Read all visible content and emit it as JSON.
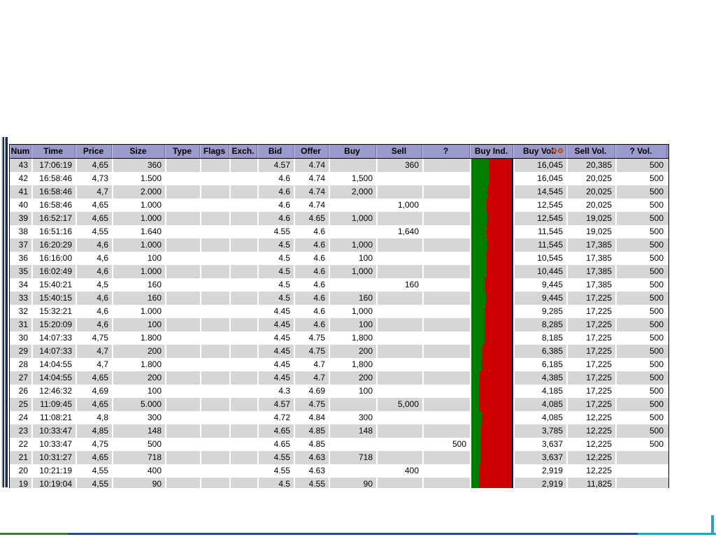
{
  "colors": {
    "header_bg": "#9b9bcb",
    "row_stripe": "#d6d6d6",
    "buy_indicator_green": "#007d00",
    "buy_indicator_red": "#cc0000",
    "indicator_border_navy": "#000066",
    "splitter_dark": "#16294e",
    "splitter_light": "#8ea7c6",
    "bottom_edge_green": "#3e7a34",
    "bottom_edge_navy": "#2a4a9a",
    "bottom_edge_cyan": "#2f9dc8"
  },
  "table": {
    "columns": [
      {
        "key": "num",
        "label": "Num"
      },
      {
        "key": "time",
        "label": "Time"
      },
      {
        "key": "price",
        "label": "Price"
      },
      {
        "key": "size",
        "label": "Size"
      },
      {
        "key": "type",
        "label": "Type"
      },
      {
        "key": "flags",
        "label": "Flags"
      },
      {
        "key": "exch",
        "label": "Exch."
      },
      {
        "key": "bid",
        "label": "Bid"
      },
      {
        "key": "offer",
        "label": "Offer"
      },
      {
        "key": "buy",
        "label": "Buy"
      },
      {
        "key": "sell",
        "label": "Sell"
      },
      {
        "key": "q",
        "label": "?"
      },
      {
        "key": "buyind",
        "label": "Buy Ind."
      },
      {
        "key": "buy_vol",
        "label": "Buy Vol.",
        "sort_icons": [
          "orange-dot-icon",
          "orange-dot-icon"
        ]
      },
      {
        "key": "sell_vol",
        "label": "Sell Vol."
      },
      {
        "key": "q_vol",
        "label": "? Vol."
      }
    ],
    "rows": [
      {
        "num": "43",
        "time": "17:06:19",
        "price": "4,65",
        "size": "360",
        "type": "",
        "flags": "",
        "exch": "",
        "bid": "4.57",
        "offer": "4.74",
        "buy": "",
        "sell": "360",
        "q": "",
        "buy_vol": "16,045",
        "sell_vol": "20,385",
        "q_vol": "500"
      },
      {
        "num": "42",
        "time": "16:58:46",
        "price": "4,73",
        "size": "1.500",
        "type": "",
        "flags": "",
        "exch": "",
        "bid": "4.6",
        "offer": "4.74",
        "buy": "1,500",
        "sell": "",
        "q": "",
        "buy_vol": "16,045",
        "sell_vol": "20,025",
        "q_vol": "500"
      },
      {
        "num": "41",
        "time": "16:58:46",
        "price": "4,7",
        "size": "2.000",
        "type": "",
        "flags": "",
        "exch": "",
        "bid": "4.6",
        "offer": "4.74",
        "buy": "2,000",
        "sell": "",
        "q": "",
        "buy_vol": "14,545",
        "sell_vol": "20,025",
        "q_vol": "500"
      },
      {
        "num": "40",
        "time": "16:58:46",
        "price": "4,65",
        "size": "1.000",
        "type": "",
        "flags": "",
        "exch": "",
        "bid": "4.6",
        "offer": "4.74",
        "buy": "",
        "sell": "1,000",
        "q": "",
        "buy_vol": "12,545",
        "sell_vol": "20,025",
        "q_vol": "500"
      },
      {
        "num": "39",
        "time": "16:52:17",
        "price": "4,65",
        "size": "1.000",
        "type": "",
        "flags": "",
        "exch": "",
        "bid": "4.6",
        "offer": "4.65",
        "buy": "1,000",
        "sell": "",
        "q": "",
        "buy_vol": "12,545",
        "sell_vol": "19,025",
        "q_vol": "500"
      },
      {
        "num": "38",
        "time": "16:51:16",
        "price": "4,55",
        "size": "1.640",
        "type": "",
        "flags": "",
        "exch": "",
        "bid": "4.55",
        "offer": "4.6",
        "buy": "",
        "sell": "1,640",
        "q": "",
        "buy_vol": "11,545",
        "sell_vol": "19,025",
        "q_vol": "500"
      },
      {
        "num": "37",
        "time": "16:20:29",
        "price": "4,6",
        "size": "1.000",
        "type": "",
        "flags": "",
        "exch": "",
        "bid": "4.5",
        "offer": "4.6",
        "buy": "1,000",
        "sell": "",
        "q": "",
        "buy_vol": "11,545",
        "sell_vol": "17,385",
        "q_vol": "500"
      },
      {
        "num": "36",
        "time": "16:16:00",
        "price": "4,6",
        "size": "100",
        "type": "",
        "flags": "",
        "exch": "",
        "bid": "4.5",
        "offer": "4.6",
        "buy": "100",
        "sell": "",
        "q": "",
        "buy_vol": "10,545",
        "sell_vol": "17,385",
        "q_vol": "500"
      },
      {
        "num": "35",
        "time": "16:02:49",
        "price": "4,6",
        "size": "1.000",
        "type": "",
        "flags": "",
        "exch": "",
        "bid": "4.5",
        "offer": "4.6",
        "buy": "1,000",
        "sell": "",
        "q": "",
        "buy_vol": "10,445",
        "sell_vol": "17,385",
        "q_vol": "500"
      },
      {
        "num": "34",
        "time": "15:40:21",
        "price": "4,5",
        "size": "160",
        "type": "",
        "flags": "",
        "exch": "",
        "bid": "4.5",
        "offer": "4.6",
        "buy": "",
        "sell": "160",
        "q": "",
        "buy_vol": "9,445",
        "sell_vol": "17,385",
        "q_vol": "500"
      },
      {
        "num": "33",
        "time": "15:40:15",
        "price": "4,6",
        "size": "160",
        "type": "",
        "flags": "",
        "exch": "",
        "bid": "4.5",
        "offer": "4.6",
        "buy": "160",
        "sell": "",
        "q": "",
        "buy_vol": "9,445",
        "sell_vol": "17,225",
        "q_vol": "500"
      },
      {
        "num": "32",
        "time": "15:32:21",
        "price": "4,6",
        "size": "1.000",
        "type": "",
        "flags": "",
        "exch": "",
        "bid": "4.45",
        "offer": "4.6",
        "buy": "1,000",
        "sell": "",
        "q": "",
        "buy_vol": "9,285",
        "sell_vol": "17,225",
        "q_vol": "500"
      },
      {
        "num": "31",
        "time": "15:20:09",
        "price": "4,6",
        "size": "100",
        "type": "",
        "flags": "",
        "exch": "",
        "bid": "4.45",
        "offer": "4.6",
        "buy": "100",
        "sell": "",
        "q": "",
        "buy_vol": "8,285",
        "sell_vol": "17,225",
        "q_vol": "500"
      },
      {
        "num": "30",
        "time": "14:07:33",
        "price": "4,75",
        "size": "1.800",
        "type": "",
        "flags": "",
        "exch": "",
        "bid": "4.45",
        "offer": "4.75",
        "buy": "1,800",
        "sell": "",
        "q": "",
        "buy_vol": "8,185",
        "sell_vol": "17,225",
        "q_vol": "500"
      },
      {
        "num": "29",
        "time": "14:07:33",
        "price": "4,7",
        "size": "200",
        "type": "",
        "flags": "",
        "exch": "",
        "bid": "4.45",
        "offer": "4.75",
        "buy": "200",
        "sell": "",
        "q": "",
        "buy_vol": "6,385",
        "sell_vol": "17,225",
        "q_vol": "500"
      },
      {
        "num": "28",
        "time": "14:04:55",
        "price": "4,7",
        "size": "1.800",
        "type": "",
        "flags": "",
        "exch": "",
        "bid": "4.45",
        "offer": "4.7",
        "buy": "1,800",
        "sell": "",
        "q": "",
        "buy_vol": "6,185",
        "sell_vol": "17,225",
        "q_vol": "500"
      },
      {
        "num": "27",
        "time": "14:04:55",
        "price": "4,65",
        "size": "200",
        "type": "",
        "flags": "",
        "exch": "",
        "bid": "4.45",
        "offer": "4.7",
        "buy": "200",
        "sell": "",
        "q": "",
        "buy_vol": "4,385",
        "sell_vol": "17,225",
        "q_vol": "500"
      },
      {
        "num": "26",
        "time": "12:46:32",
        "price": "4,69",
        "size": "100",
        "type": "",
        "flags": "",
        "exch": "",
        "bid": "4.3",
        "offer": "4.69",
        "buy": "100",
        "sell": "",
        "q": "",
        "buy_vol": "4,185",
        "sell_vol": "17,225",
        "q_vol": "500"
      },
      {
        "num": "25",
        "time": "11:09:45",
        "price": "4,65",
        "size": "5.000",
        "type": "",
        "flags": "",
        "exch": "",
        "bid": "4.57",
        "offer": "4.75",
        "buy": "",
        "sell": "5,000",
        "q": "",
        "buy_vol": "4,085",
        "sell_vol": "17,225",
        "q_vol": "500"
      },
      {
        "num": "24",
        "time": "11:08:21",
        "price": "4,8",
        "size": "300",
        "type": "",
        "flags": "",
        "exch": "",
        "bid": "4.72",
        "offer": "4.84",
        "buy": "300",
        "sell": "",
        "q": "",
        "buy_vol": "4,085",
        "sell_vol": "12,225",
        "q_vol": "500"
      },
      {
        "num": "23",
        "time": "10:33:47",
        "price": "4,85",
        "size": "148",
        "type": "",
        "flags": "",
        "exch": "",
        "bid": "4.65",
        "offer": "4.85",
        "buy": "148",
        "sell": "",
        "q": "",
        "buy_vol": "3,785",
        "sell_vol": "12,225",
        "q_vol": "500"
      },
      {
        "num": "22",
        "time": "10:33:47",
        "price": "4,75",
        "size": "500",
        "type": "",
        "flags": "",
        "exch": "",
        "bid": "4.65",
        "offer": "4.85",
        "buy": "",
        "sell": "",
        "q": "500",
        "buy_vol": "3,637",
        "sell_vol": "12,225",
        "q_vol": "500"
      },
      {
        "num": "21",
        "time": "10:31:27",
        "price": "4,65",
        "size": "718",
        "type": "",
        "flags": "",
        "exch": "",
        "bid": "4.55",
        "offer": "4.63",
        "buy": "718",
        "sell": "",
        "q": "",
        "buy_vol": "3,637",
        "sell_vol": "12,225",
        "q_vol": ""
      },
      {
        "num": "20",
        "time": "10:21:19",
        "price": "4,55",
        "size": "400",
        "type": "",
        "flags": "",
        "exch": "",
        "bid": "4.55",
        "offer": "4.63",
        "buy": "",
        "sell": "400",
        "q": "",
        "buy_vol": "2,919",
        "sell_vol": "12,225",
        "q_vol": ""
      },
      {
        "num": "19",
        "time": "10:19:04",
        "price": "4,55",
        "size": "90",
        "type": "",
        "flags": "",
        "exch": "",
        "bid": "4.5",
        "offer": "4.55",
        "buy": "90",
        "sell": "",
        "q": "",
        "buy_vol": "2,919",
        "sell_vol": "11,825",
        "q_vol": ""
      }
    ]
  }
}
